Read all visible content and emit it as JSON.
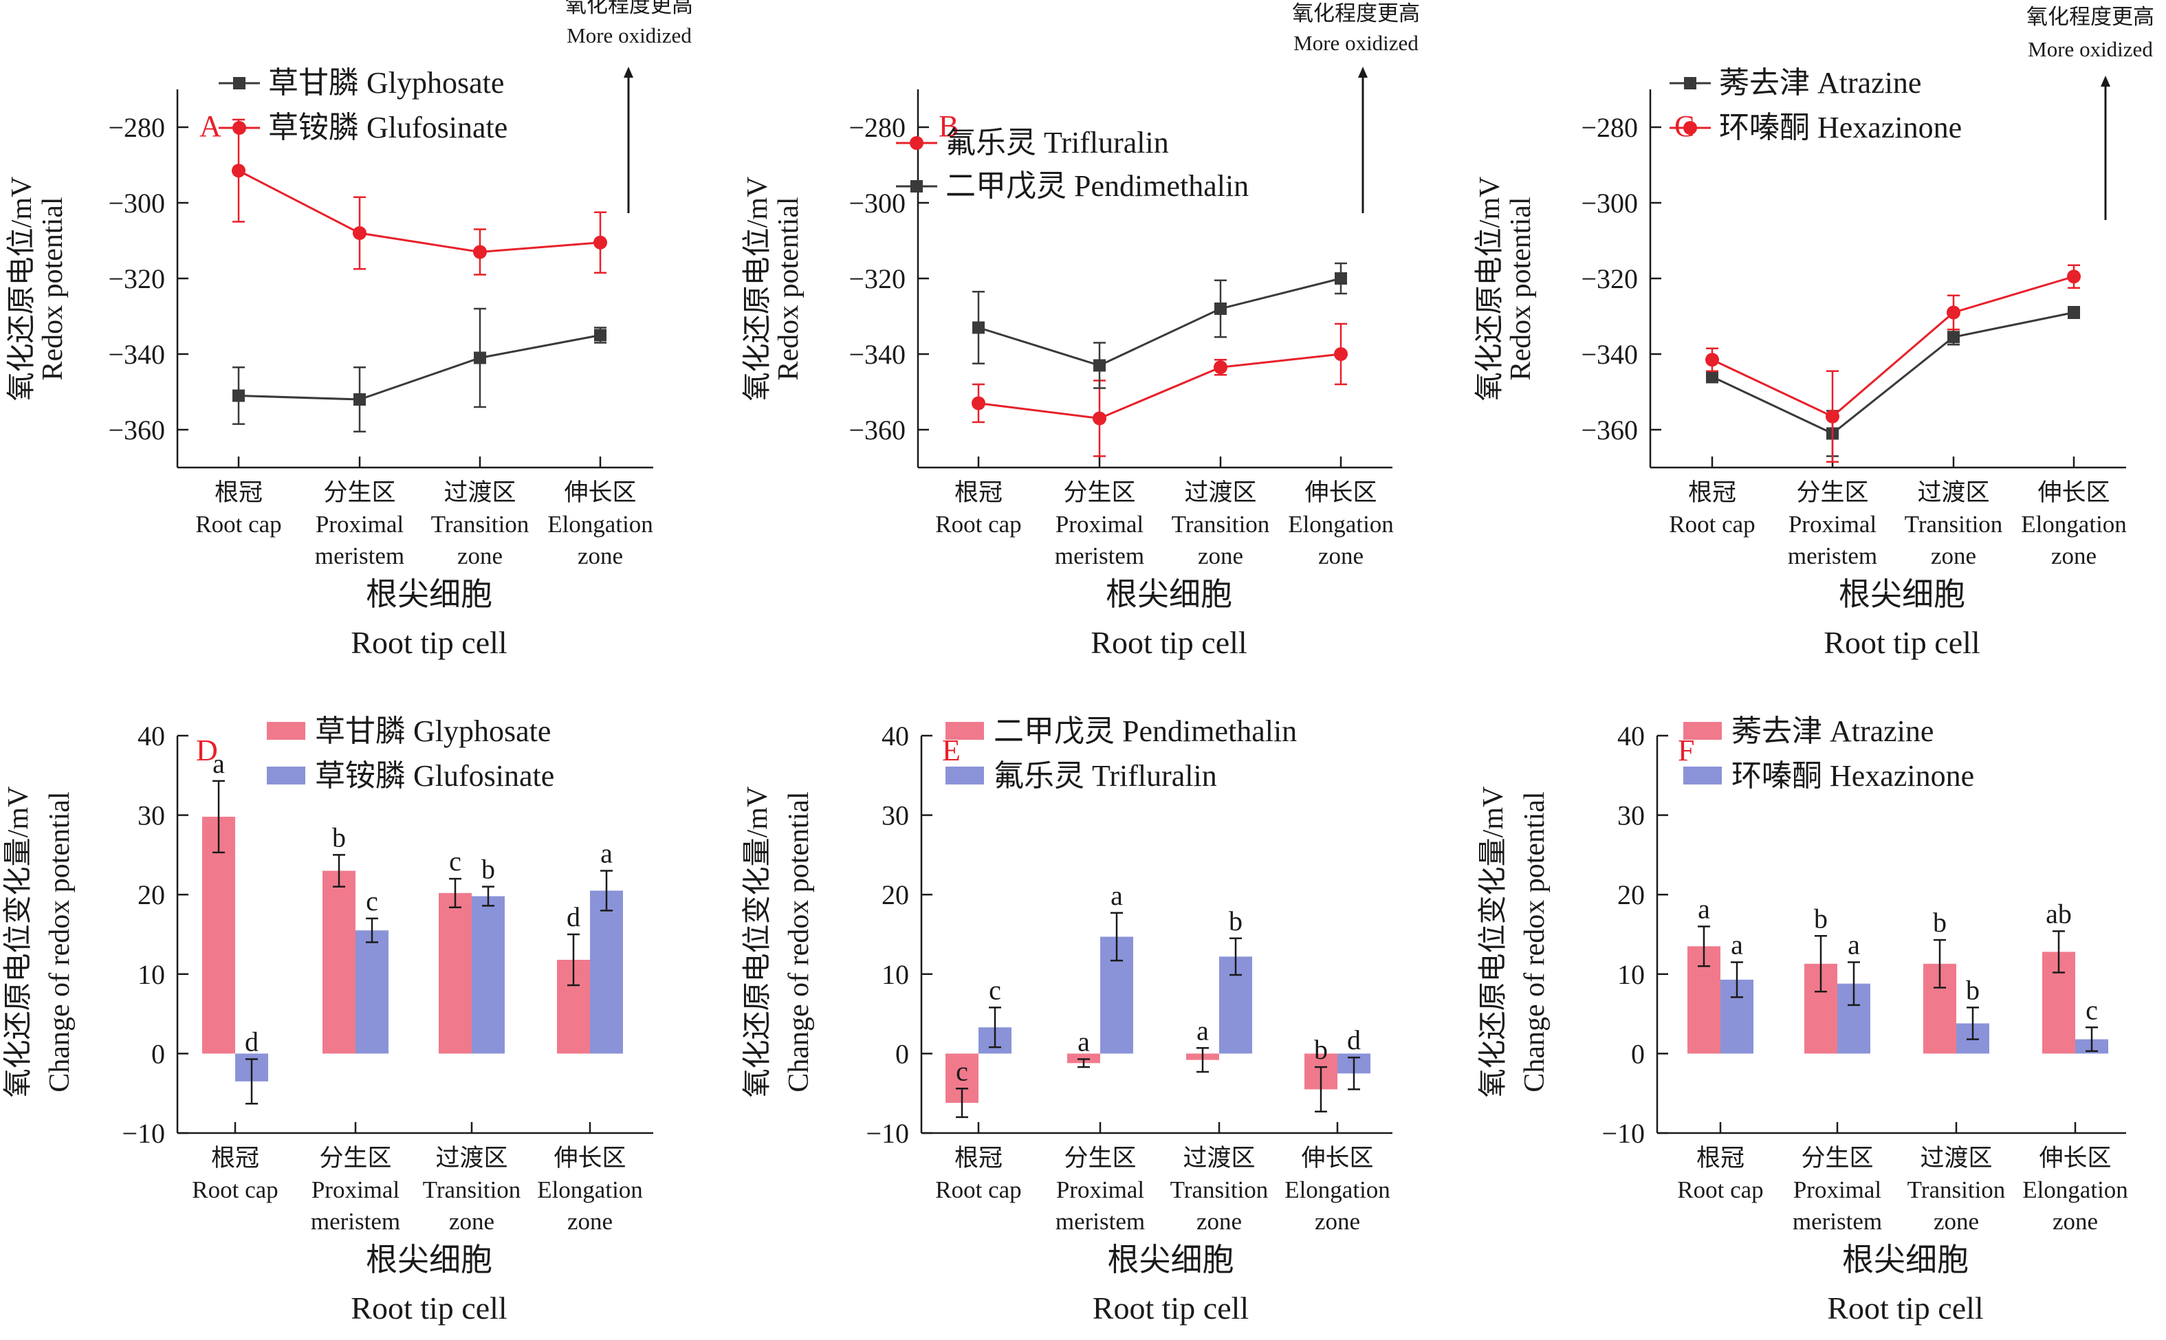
{
  "colors": {
    "black_series": "#3a3a3a",
    "red_series": "#e8202a",
    "pink_bar": "#f07a8c",
    "blue_bar": "#8a93d8",
    "panel_letter": "#e8202a"
  },
  "line_ylabel": [
    "氧化还原电位/mV",
    "Redox potential"
  ],
  "bar_ylabel": [
    "氧化还原电位变化量/mV",
    "Change of redox potential"
  ],
  "xlabel": [
    "根尖细胞",
    "Root tip cell"
  ],
  "oxid_label": [
    "氧化程度更高",
    "More oxidized"
  ],
  "categories": [
    [
      "根冠",
      "Root cap"
    ],
    [
      "分生区",
      "Proximal",
      "meristem"
    ],
    [
      "过渡区",
      "Transition",
      "zone"
    ],
    [
      "伸长区",
      "Elongation",
      "zone"
    ]
  ],
  "chart_data": [
    {
      "panel": "A",
      "type": "line",
      "ylim": [
        -370,
        -270
      ],
      "yticks": [
        -280,
        -300,
        -320,
        -340,
        -360
      ],
      "series": [
        {
          "name": "草甘膦 Glyphosate",
          "color": "#3a3a3a",
          "marker": "square",
          "values": [
            -351,
            -352,
            -341,
            -335
          ],
          "errors": [
            7.5,
            8.5,
            13,
            2
          ]
        },
        {
          "name": "草铵膦 Glufosinate",
          "color": "#e8202a",
          "marker": "circle",
          "values": [
            -291.5,
            -308,
            -313,
            -310.5
          ],
          "errors": [
            13.5,
            9.5,
            6,
            8
          ]
        }
      ]
    },
    {
      "panel": "B",
      "type": "line",
      "ylim": [
        -370,
        -270
      ],
      "yticks": [
        -280,
        -300,
        -320,
        -340,
        -360
      ],
      "series": [
        {
          "name": "氟乐灵 Trifluralin",
          "color": "#e8202a",
          "marker": "circle",
          "values": [
            -353,
            -357,
            -343.5,
            -340
          ],
          "errors": [
            5,
            10,
            2,
            8
          ]
        },
        {
          "name": "二甲戊灵 Pendimethalin",
          "color": "#3a3a3a",
          "marker": "square",
          "values": [
            -333,
            -343,
            -328,
            -320
          ],
          "errors": [
            9.5,
            6,
            7.5,
            4
          ]
        }
      ]
    },
    {
      "panel": "C",
      "type": "line",
      "ylim": [
        -370,
        -270
      ],
      "yticks": [
        -280,
        -300,
        -320,
        -340,
        -360
      ],
      "series": [
        {
          "name": "莠去津 Atrazine",
          "color": "#3a3a3a",
          "marker": "square",
          "values": [
            -346,
            -361,
            -335.5,
            -329
          ],
          "errors": [
            1.5,
            6,
            2,
            1.5
          ]
        },
        {
          "name": "环嗪酮 Hexazinone",
          "color": "#e8202a",
          "marker": "circle",
          "values": [
            -341.5,
            -356.5,
            -329,
            -319.5
          ],
          "errors": [
            3,
            12,
            4.5,
            3
          ]
        }
      ]
    },
    {
      "panel": "D",
      "type": "bar",
      "ylim": [
        -10,
        40
      ],
      "yticks": [
        40,
        30,
        20,
        10,
        0,
        -10
      ],
      "series": [
        {
          "name": "草甘膦 Glyphosate",
          "color": "#f07a8c",
          "values": [
            29.8,
            23,
            20.2,
            11.8
          ],
          "errors": [
            4.5,
            2,
            1.8,
            3.2
          ],
          "labels": [
            "a",
            "b",
            "c",
            "d"
          ]
        },
        {
          "name": "草铵膦 Glufosinate",
          "color": "#8a93d8",
          "values": [
            -3.5,
            15.5,
            19.8,
            20.5
          ],
          "errors": [
            2.8,
            1.5,
            1.2,
            2.5
          ],
          "labels": [
            "d",
            "c",
            "b",
            "a"
          ]
        }
      ]
    },
    {
      "panel": "E",
      "type": "bar",
      "ylim": [
        -10,
        40
      ],
      "yticks": [
        40,
        30,
        20,
        10,
        0,
        -10
      ],
      "series": [
        {
          "name": "二甲戊灵 Pendimethalin",
          "color": "#f07a8c",
          "values": [
            -6.2,
            -1.2,
            -0.8,
            -4.5
          ],
          "errors": [
            1.8,
            0.5,
            1.5,
            2.8
          ],
          "labels": [
            "c",
            "a",
            "a",
            "b"
          ]
        },
        {
          "name": "氟乐灵 Trifluralin",
          "color": "#8a93d8",
          "values": [
            3.3,
            14.7,
            12.2,
            -2.5
          ],
          "errors": [
            2.5,
            3,
            2.3,
            2
          ],
          "labels": [
            "c",
            "a",
            "b",
            "d"
          ]
        }
      ]
    },
    {
      "panel": "F",
      "type": "bar",
      "ylim": [
        -10,
        40
      ],
      "yticks": [
        40,
        30,
        20,
        10,
        0,
        -10
      ],
      "series": [
        {
          "name": "莠去津 Atrazine",
          "color": "#f07a8c",
          "values": [
            13.5,
            11.3,
            11.3,
            12.8
          ],
          "errors": [
            2.5,
            3.5,
            3,
            2.6
          ],
          "labels": [
            "a",
            "b",
            "b",
            "ab"
          ]
        },
        {
          "name": "环嗪酮 Hexazinone",
          "color": "#8a93d8",
          "values": [
            9.3,
            8.8,
            3.8,
            1.8
          ],
          "errors": [
            2.2,
            2.7,
            2,
            1.5
          ],
          "labels": [
            "a",
            "a",
            "b",
            "c"
          ]
        }
      ]
    }
  ]
}
